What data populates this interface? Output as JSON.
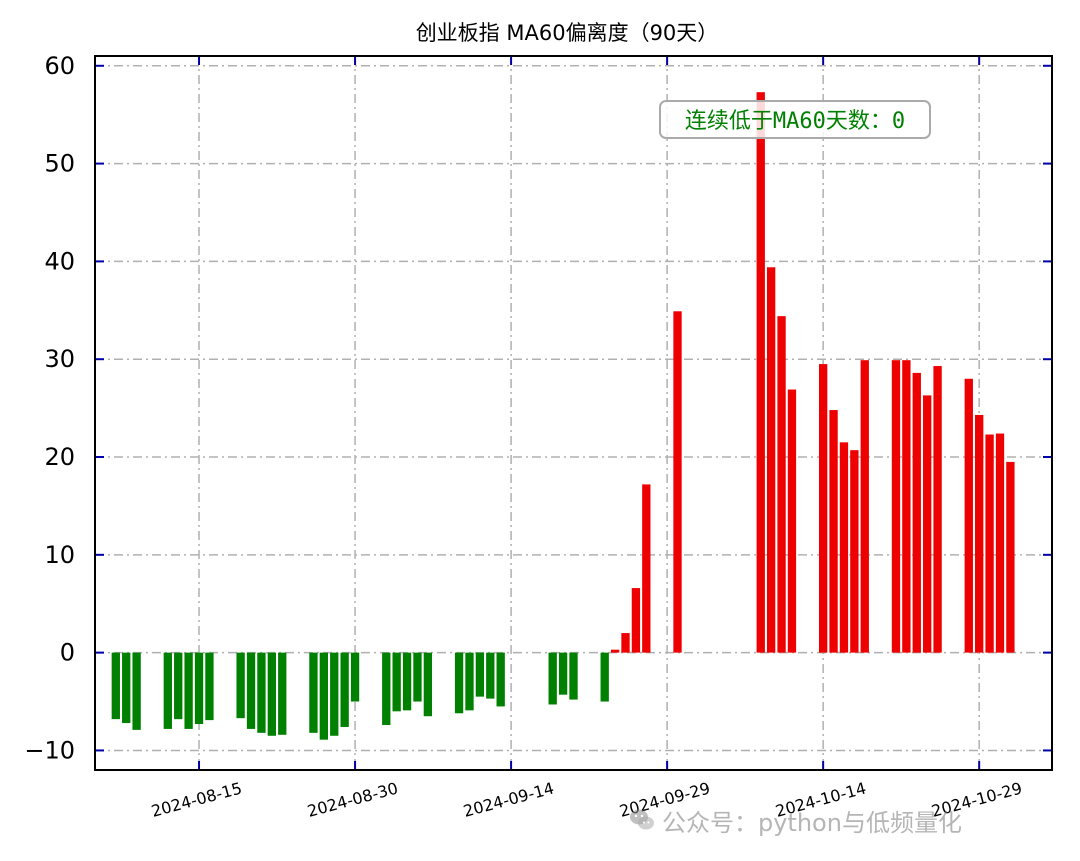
{
  "chart_data": {
    "type": "bar",
    "title": "创业板指 MA60偏离度（90天）",
    "annotation": "连续低于MA60天数：0",
    "annotation_color": "#008000",
    "positive_color": "#ee0000",
    "negative_color": "#008000",
    "ylim": [
      -12,
      61
    ],
    "yticks": [
      -10,
      0,
      10,
      20,
      30,
      40,
      50,
      60
    ],
    "ytick_labels": [
      "−10",
      "0",
      "10",
      "20",
      "30",
      "40",
      "50",
      "60"
    ],
    "xlim": [
      "2024-08-05",
      "2024-11-05"
    ],
    "xticks": [
      "2024-08-15",
      "2024-08-30",
      "2024-09-14",
      "2024-09-29",
      "2024-10-14",
      "2024-10-29"
    ],
    "grid": true,
    "x": [
      "2024-08-07",
      "2024-08-08",
      "2024-08-09",
      "2024-08-12",
      "2024-08-13",
      "2024-08-14",
      "2024-08-15",
      "2024-08-16",
      "2024-08-19",
      "2024-08-20",
      "2024-08-21",
      "2024-08-22",
      "2024-08-23",
      "2024-08-26",
      "2024-08-27",
      "2024-08-28",
      "2024-08-29",
      "2024-08-30",
      "2024-09-02",
      "2024-09-03",
      "2024-09-04",
      "2024-09-05",
      "2024-09-06",
      "2024-09-09",
      "2024-09-10",
      "2024-09-11",
      "2024-09-12",
      "2024-09-13",
      "2024-09-18",
      "2024-09-19",
      "2024-09-20",
      "2024-09-23",
      "2024-09-24",
      "2024-09-25",
      "2024-09-26",
      "2024-09-27",
      "2024-09-30",
      "2024-10-08",
      "2024-10-09",
      "2024-10-10",
      "2024-10-11",
      "2024-10-14",
      "2024-10-15",
      "2024-10-16",
      "2024-10-17",
      "2024-10-18",
      "2024-10-21",
      "2024-10-22",
      "2024-10-23",
      "2024-10-24",
      "2024-10-25",
      "2024-10-28",
      "2024-10-29",
      "2024-10-30",
      "2024-10-31",
      "2024-11-01"
    ],
    "values": [
      -6.8,
      -7.2,
      -7.9,
      -7.8,
      -6.8,
      -7.8,
      -7.3,
      -6.9,
      -6.7,
      -7.8,
      -8.2,
      -8.5,
      -8.4,
      -8.2,
      -8.9,
      -8.5,
      -7.6,
      -5.0,
      -7.4,
      -6.0,
      -5.9,
      -5.0,
      -6.5,
      -6.2,
      -5.9,
      -4.5,
      -4.7,
      -5.5,
      -5.3,
      -4.3,
      -4.8,
      -5.0,
      0.3,
      2.0,
      6.6,
      17.2,
      34.9,
      57.3,
      39.4,
      34.4,
      26.9,
      29.5,
      24.8,
      21.5,
      20.7,
      29.9,
      29.9,
      29.9,
      28.6,
      26.3,
      29.3,
      28.0,
      24.3,
      22.3,
      22.4,
      19.5
    ]
  },
  "watermark": "公众号：python与低频量化"
}
